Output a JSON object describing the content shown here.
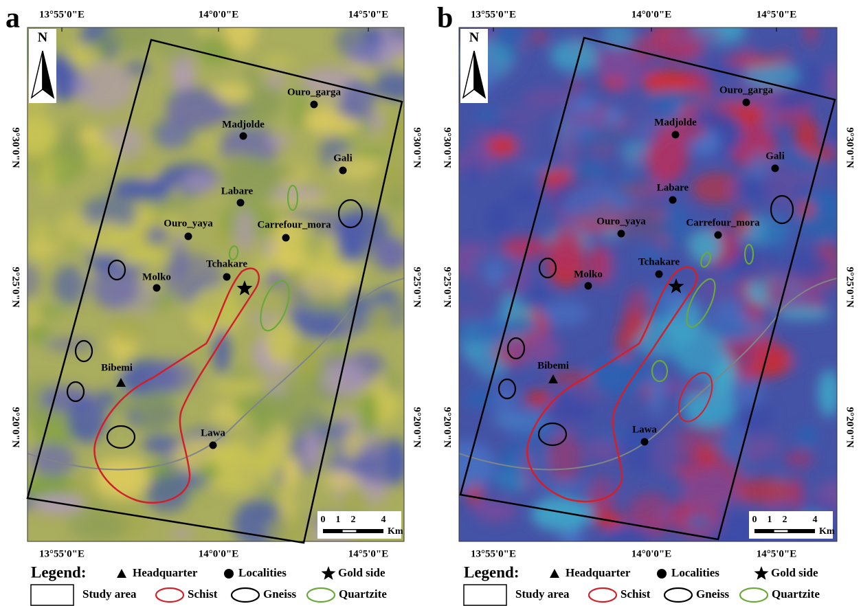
{
  "figure": {
    "panels": [
      {
        "label": "a"
      },
      {
        "label": "b"
      }
    ],
    "longitude_labels": [
      "13°55'0\"E",
      "14°0'0\"E",
      "14°5'0\"E"
    ],
    "latitude_labels": [
      "9°30'0\"N",
      "9°25'0\"N",
      "9°20'0\"N"
    ],
    "north": "N",
    "places": [
      {
        "name": "Ouro_garga",
        "kind": "locality"
      },
      {
        "name": "Madjolde",
        "kind": "locality"
      },
      {
        "name": "Gali",
        "kind": "locality"
      },
      {
        "name": "Labare",
        "kind": "locality"
      },
      {
        "name": "Ouro_yaya",
        "kind": "locality"
      },
      {
        "name": "Carrefour_mora",
        "kind": "locality"
      },
      {
        "name": "Tchakare",
        "kind": "locality"
      },
      {
        "name": "Molko",
        "kind": "locality"
      },
      {
        "name": "Bibemi",
        "kind": "headquarter"
      },
      {
        "name": "Lawa",
        "kind": "locality"
      }
    ],
    "scale_bar": {
      "ticks": [
        0,
        1,
        2,
        4
      ],
      "unit": "Km"
    },
    "legend": {
      "title": "Legend:",
      "items": [
        "Headquarter",
        "Localities",
        "Gold side",
        "Study area",
        "Schist",
        "Gneiss",
        "Quartzite"
      ]
    }
  }
}
